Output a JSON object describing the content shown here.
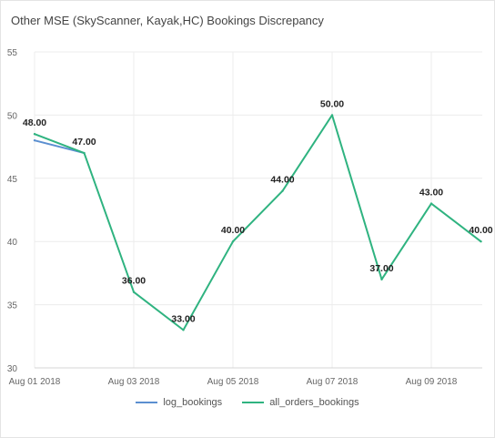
{
  "title": "Other MSE (SkyScanner, Kayak,HC) Bookings Discrepancy",
  "chart_data": {
    "type": "line",
    "title": "Other MSE (SkyScanner, Kayak,HC) Bookings Discrepancy",
    "x": [
      "Aug 01 2018",
      "Aug 02 2018",
      "Aug 03 2018",
      "Aug 04 2018",
      "Aug 05 2018",
      "Aug 06 2018",
      "Aug 07 2018",
      "Aug 08 2018",
      "Aug 09 2018",
      "Aug 10 2018"
    ],
    "x_tick_labels": [
      "Aug 01 2018",
      "Aug 03 2018",
      "Aug 05 2018",
      "Aug 07 2018",
      "Aug 09 2018"
    ],
    "y_ticks": [
      "30",
      "35",
      "40",
      "45",
      "50",
      "55"
    ],
    "ylim": [
      30,
      55
    ],
    "grid": true,
    "legend_position": "bottom",
    "series": [
      {
        "name": "log_bookings",
        "color": "#5b8fd0",
        "values": [
          48,
          47,
          null,
          null,
          null,
          null,
          null,
          null,
          null,
          null
        ]
      },
      {
        "name": "all_orders_bookings",
        "color": "#2fb380",
        "values": [
          48.5,
          47,
          36,
          33,
          40,
          44,
          50,
          37,
          43,
          40
        ]
      }
    ],
    "data_labels": [
      "48.00",
      "47.00",
      "36.00",
      "33.00",
      "40.00",
      "44.00",
      "50.00",
      "37.00",
      "43.00",
      "40.00"
    ]
  }
}
